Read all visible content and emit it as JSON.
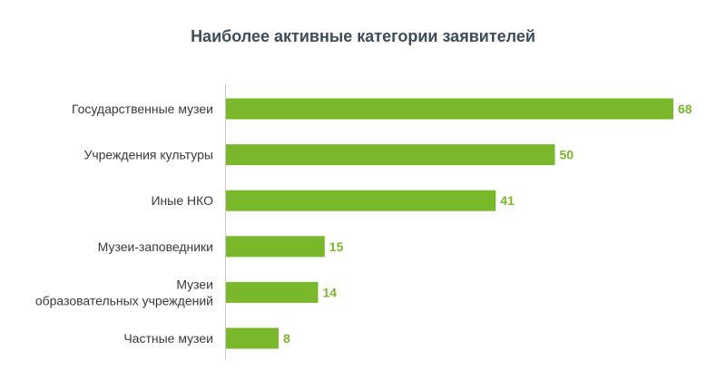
{
  "chart_data": {
    "type": "bar",
    "orientation": "horizontal",
    "title": "Наиболее активные категории заявителей",
    "xlabel": "",
    "ylabel": "",
    "categories": [
      "Государственные  музеи",
      "Учреждения культуры",
      "Иные НКО",
      "Музеи-заповедники",
      "Музеи образовательных учреждений",
      "Частные музеи"
    ],
    "category_lines": [
      [
        "Государственные  музеи"
      ],
      [
        "Учреждения культуры"
      ],
      [
        "Иные НКО"
      ],
      [
        "Музеи-заповедники"
      ],
      [
        "Музеи",
        "образовательных учреждений"
      ],
      [
        "Частные музеи"
      ]
    ],
    "values": [
      68,
      50,
      41,
      15,
      14,
      8
    ],
    "xlim": [
      0,
      68
    ],
    "grid": false,
    "legend": "none",
    "colors": {
      "bar": "#78b82a",
      "value_label": "#78b82a",
      "axis": "#c8c8c8",
      "title": "#3d4d5c"
    }
  }
}
